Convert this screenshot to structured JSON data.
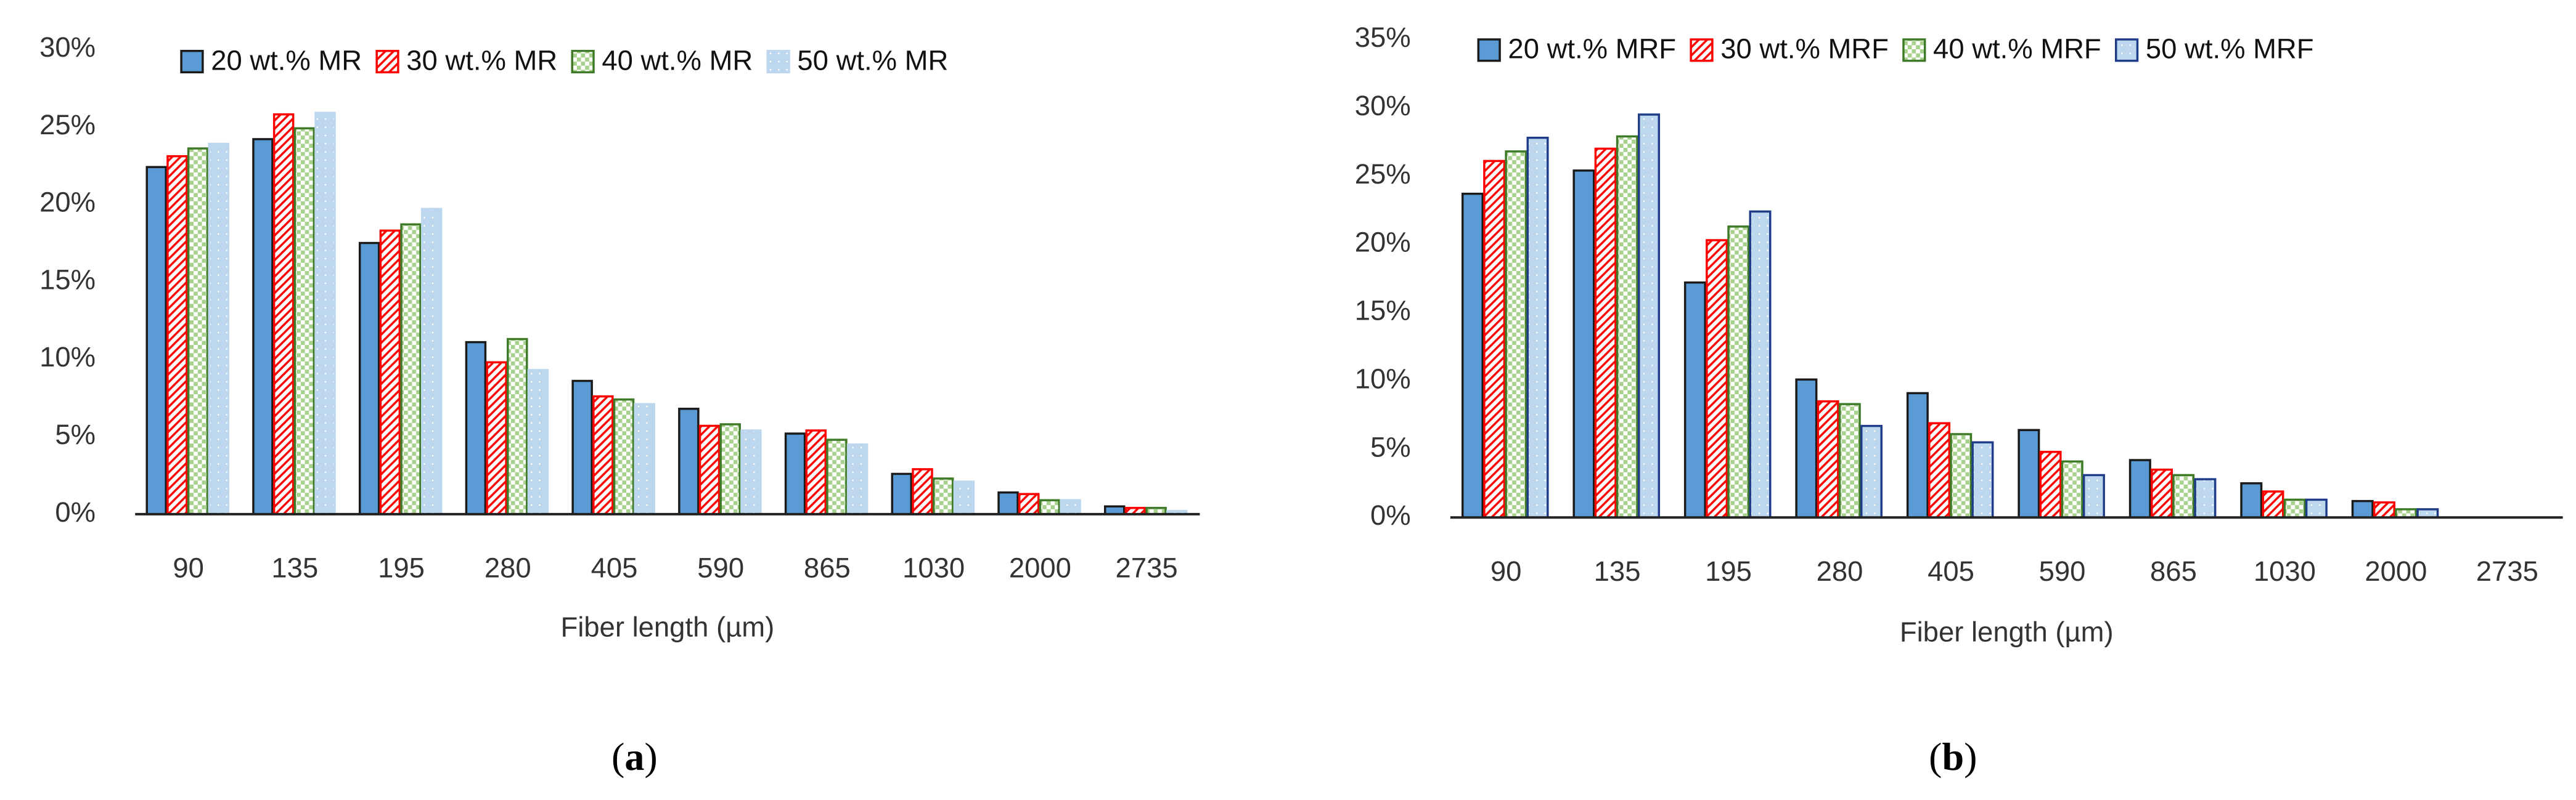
{
  "chart_data": [
    {
      "type": "bar",
      "caption_open": "(",
      "caption_letter": "a",
      "caption_close": ")",
      "xlabel": "Fiber length (µm)",
      "categories": [
        "90",
        "135",
        "195",
        "280",
        "405",
        "590",
        "865",
        "1030",
        "2000",
        "2735"
      ],
      "series": [
        {
          "name": "20 wt.% MR",
          "color": "#5b9bd5",
          "edgecolor": "#1a1a1a",
          "values": [
            22.4,
            24.2,
            17.5,
            11.1,
            8.6,
            6.8,
            5.2,
            2.6,
            1.4,
            0.5
          ]
        },
        {
          "name": "30 wt.% MR",
          "color": "#ff0000",
          "edgecolor": "#ff0000",
          "values": [
            23.1,
            25.8,
            18.3,
            9.8,
            7.6,
            5.7,
            5.4,
            2.9,
            1.3,
            0.4
          ]
        },
        {
          "name": "40 wt.% MR",
          "color": "#a9d18e",
          "edgecolor": "#3e7a28",
          "values": [
            23.6,
            24.9,
            18.7,
            11.3,
            7.4,
            5.8,
            4.8,
            2.3,
            0.9,
            0.4
          ]
        },
        {
          "name": "50 wt.% MR",
          "color": "#bdd7ee",
          "edgecolor": "#bdd7ee",
          "values": [
            23.9,
            25.9,
            19.7,
            9.3,
            7.1,
            5.4,
            4.5,
            2.1,
            0.9,
            0.2
          ]
        }
      ],
      "ylim": [
        0,
        30
      ],
      "yticks": [
        {
          "value": 0,
          "label": "0%"
        },
        {
          "value": 5,
          "label": "5%"
        },
        {
          "value": 10,
          "label": "10%"
        },
        {
          "value": 15,
          "label": "15%"
        },
        {
          "value": 20,
          "label": "20%"
        },
        {
          "value": 25,
          "label": "25%"
        },
        {
          "value": 30,
          "label": "30%"
        }
      ],
      "grid": false,
      "legend": "top"
    },
    {
      "type": "bar",
      "caption_open": "(",
      "caption_letter": "b",
      "caption_close": ")",
      "xlabel": "Fiber length (µm)",
      "categories": [
        "90",
        "135",
        "195",
        "280",
        "405",
        "590",
        "865",
        "1030",
        "2000",
        "2735"
      ],
      "series": [
        {
          "name": "20 wt.% MRF",
          "color": "#5b9bd5",
          "edgecolor": "#1a1a1a",
          "values": [
            23.7,
            25.4,
            17.2,
            10.1,
            9.1,
            6.4,
            4.2,
            2.5,
            1.2,
            0
          ]
        },
        {
          "name": "30 wt.% MRF",
          "color": "#ff0000",
          "edgecolor": "#ff0000",
          "values": [
            26.1,
            27.0,
            20.3,
            8.5,
            6.9,
            4.8,
            3.5,
            1.9,
            1.1,
            0
          ]
        },
        {
          "name": "40 wt.% MRF",
          "color": "#a9d18e",
          "edgecolor": "#3e7a28",
          "values": [
            26.8,
            27.9,
            21.3,
            8.3,
            6.1,
            4.1,
            3.1,
            1.3,
            0.6,
            0
          ]
        },
        {
          "name": "50 wt.% MRF",
          "color": "#bdd7ee",
          "edgecolor": "#1f3c88",
          "values": [
            27.8,
            29.5,
            22.4,
            6.7,
            5.5,
            3.1,
            2.8,
            1.3,
            0.6,
            0
          ]
        }
      ],
      "ylim": [
        0,
        35
      ],
      "yticks": [
        {
          "value": 0,
          "label": "0%"
        },
        {
          "value": 5,
          "label": "5%"
        },
        {
          "value": 10,
          "label": "10%"
        },
        {
          "value": 15,
          "label": "15%"
        },
        {
          "value": 20,
          "label": "20%"
        },
        {
          "value": 25,
          "label": "25%"
        },
        {
          "value": 30,
          "label": "30%"
        },
        {
          "value": 35,
          "label": "35%"
        }
      ],
      "grid": false,
      "legend": "top"
    }
  ]
}
